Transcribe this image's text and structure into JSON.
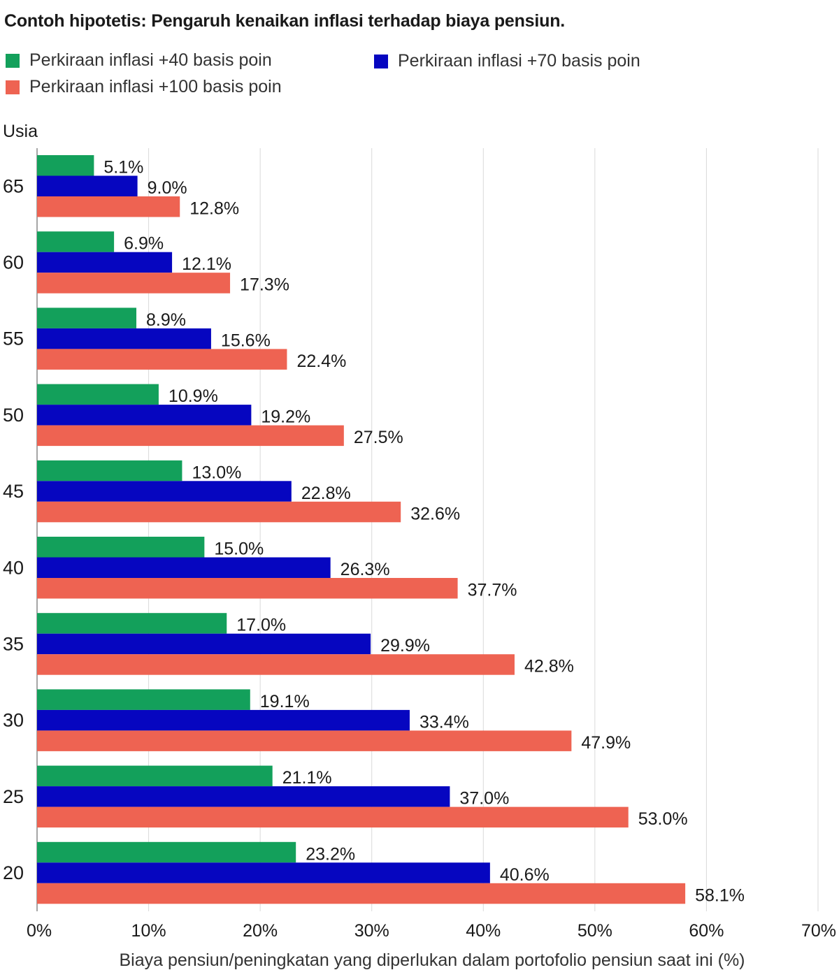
{
  "colors": {
    "series_0": "#13a05b",
    "series_1": "#0606c0",
    "series_2": "#ee6352",
    "grid": "#d9d9d9",
    "axis": "#888888",
    "text": "#1a1a1a"
  },
  "chart_data": {
    "type": "bar",
    "orientation": "horizontal",
    "title": "Contoh hipotetis: Pengaruh kenaikan inflasi terhadap biaya pensiun.",
    "y_axis_title": "Usia",
    "xlabel": "Biaya pensiun/peningkatan yang diperlukan dalam portofolio pensiun saat ini (%)",
    "categories": [
      "65",
      "60",
      "55",
      "50",
      "45",
      "40",
      "35",
      "30",
      "25",
      "20"
    ],
    "x_ticks": [
      "0%",
      "10%",
      "20%",
      "30%",
      "40%",
      "50%",
      "60%",
      "70%"
    ],
    "xlim": [
      0,
      70
    ],
    "grid": true,
    "legend_position": "top-left",
    "series": [
      {
        "name": "Perkiraan inflasi +40 basis poin",
        "values": [
          5.1,
          6.9,
          8.9,
          10.9,
          13.0,
          15.0,
          17.0,
          19.1,
          21.1,
          23.2
        ],
        "labels": [
          "5.1%",
          "6.9%",
          "8.9%",
          "10.9%",
          "13.0%",
          "15.0%",
          "17.0%",
          "19.1%",
          "21.1%",
          "23.2%"
        ]
      },
      {
        "name": "Perkiraan inflasi +70 basis poin",
        "values": [
          9.0,
          12.1,
          15.6,
          19.2,
          22.8,
          26.3,
          29.9,
          33.4,
          37.0,
          40.6
        ],
        "labels": [
          "9.0%",
          "12.1%",
          "15.6%",
          "19.2%",
          "22.8%",
          "26.3%",
          "29.9%",
          "33.4%",
          "37.0%",
          "40.6%"
        ]
      },
      {
        "name": "Perkiraan inflasi +100 basis poin",
        "values": [
          12.8,
          17.3,
          22.4,
          27.5,
          32.6,
          37.7,
          42.8,
          47.9,
          53.0,
          58.1
        ],
        "labels": [
          "12.8%",
          "17.3%",
          "22.4%",
          "27.5%",
          "32.6%",
          "37.7%",
          "42.8%",
          "47.9%",
          "53.0%",
          "58.1%"
        ]
      }
    ]
  }
}
